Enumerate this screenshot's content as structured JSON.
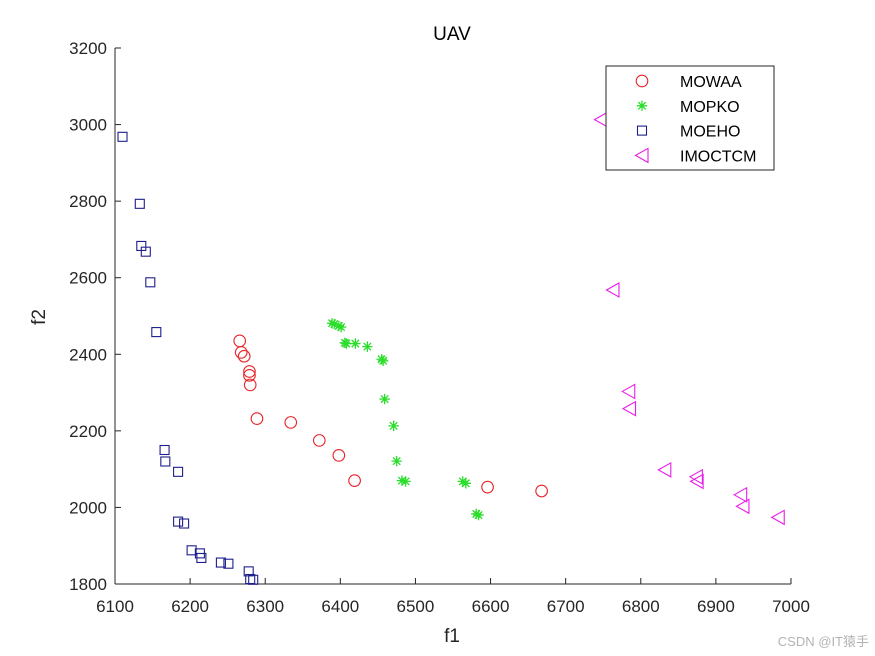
{
  "chart_data": {
    "type": "scatter",
    "title": "UAV",
    "xlabel": "f1",
    "ylabel": "f2",
    "xlim": [
      6100,
      7000
    ],
    "ylim": [
      1800,
      3200
    ],
    "xticks": [
      6100,
      6200,
      6300,
      6400,
      6500,
      6600,
      6700,
      6800,
      6900,
      7000
    ],
    "yticks": [
      1800,
      2000,
      2200,
      2400,
      2600,
      2800,
      3000,
      3200
    ],
    "legend_position": "top-right",
    "series": [
      {
        "name": "MOWAA",
        "marker": "circle",
        "color": "#e8262a",
        "points": [
          [
            6266,
            2435
          ],
          [
            6268,
            2405
          ],
          [
            6272,
            2395
          ],
          [
            6279,
            2355
          ],
          [
            6279,
            2345
          ],
          [
            6280,
            2320
          ],
          [
            6289,
            2232
          ],
          [
            6334,
            2222
          ],
          [
            6372,
            2175
          ],
          [
            6398,
            2136
          ],
          [
            6419,
            2070
          ],
          [
            6596,
            2053
          ],
          [
            6668,
            2043
          ]
        ]
      },
      {
        "name": "MOPKO",
        "marker": "asterisk",
        "color": "#2bde2b",
        "points": [
          [
            6389,
            2481
          ],
          [
            6392,
            2479
          ],
          [
            6398,
            2474
          ],
          [
            6401,
            2471
          ],
          [
            6406,
            2430
          ],
          [
            6408,
            2428
          ],
          [
            6420,
            2428
          ],
          [
            6436,
            2420
          ],
          [
            6455,
            2387
          ],
          [
            6457,
            2383
          ],
          [
            6459,
            2283
          ],
          [
            6471,
            2213
          ],
          [
            6475,
            2121
          ],
          [
            6482,
            2070
          ],
          [
            6487,
            2068
          ],
          [
            6563,
            2068
          ],
          [
            6567,
            2063
          ],
          [
            6581,
            1983
          ],
          [
            6584,
            1980
          ]
        ]
      },
      {
        "name": "MOEHO",
        "marker": "square",
        "color": "#1e1e8c",
        "points": [
          [
            6110,
            2968
          ],
          [
            6133,
            2793
          ],
          [
            6135,
            2683
          ],
          [
            6141,
            2668
          ],
          [
            6147,
            2588
          ],
          [
            6155,
            2458
          ],
          [
            6166,
            2150
          ],
          [
            6167,
            2120
          ],
          [
            6184,
            2093
          ],
          [
            6184,
            1963
          ],
          [
            6192,
            1958
          ],
          [
            6202,
            1888
          ],
          [
            6213,
            1880
          ],
          [
            6215,
            1868
          ],
          [
            6241,
            1856
          ],
          [
            6251,
            1853
          ],
          [
            6278,
            1833
          ],
          [
            6280,
            1813
          ],
          [
            6284,
            1811
          ]
        ]
      },
      {
        "name": "IMOCTCM",
        "marker": "triangle-left",
        "color": "#e81ee8",
        "points": [
          [
            6747,
            3013
          ],
          [
            6763,
            2568
          ],
          [
            6784,
            2303
          ],
          [
            6785,
            2258
          ],
          [
            6832,
            2098
          ],
          [
            6874,
            2080
          ],
          [
            6875,
            2068
          ],
          [
            6933,
            2033
          ],
          [
            6936,
            2003
          ],
          [
            6983,
            1974
          ]
        ]
      }
    ]
  },
  "watermark": "CSDN @IT猿手"
}
